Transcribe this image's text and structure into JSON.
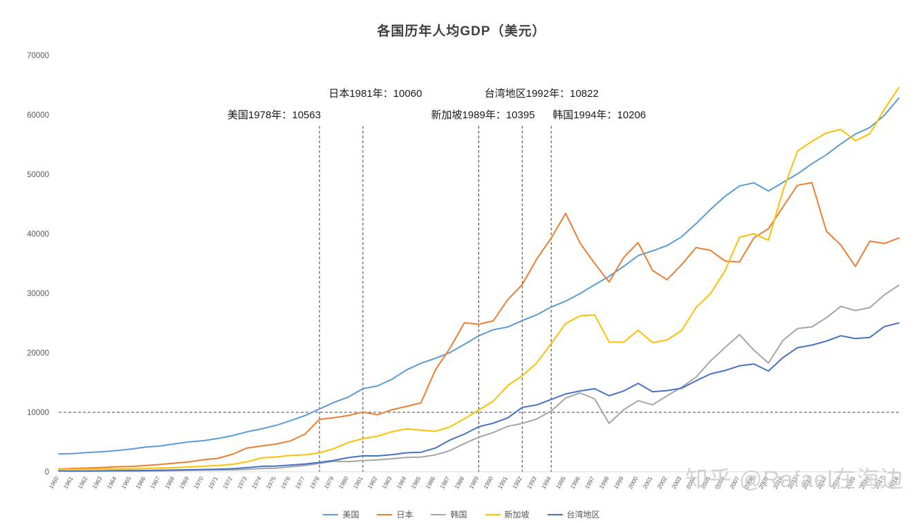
{
  "title": "各国历年人均GDP（美元）",
  "watermark": "知乎 @Rafael在海边",
  "chart_data": {
    "type": "line",
    "title": "各国历年人均GDP（美元）",
    "xlabel": "",
    "ylabel": "",
    "ylim": [
      0,
      70000
    ],
    "ytick_interval": 10000,
    "grid": false,
    "legend_position": "bottom",
    "reference_line_y": 10000,
    "reference_lines_x": [
      1978,
      1981,
      1989,
      1992,
      1994
    ],
    "annotations": [
      {
        "text": "美国1978年：10563",
        "year": 1978,
        "row": 2
      },
      {
        "text": "日本1981年：10060",
        "year": 1981,
        "row": 1
      },
      {
        "text": "新加坡1989年：10395",
        "year": 1989,
        "row": 2
      },
      {
        "text": "台湾地区1992年：10822",
        "year": 1992,
        "row": 1
      },
      {
        "text": "韩国1994年：10206",
        "year": 1994,
        "row": 2
      }
    ],
    "x": [
      1960,
      1961,
      1962,
      1963,
      1964,
      1965,
      1966,
      1967,
      1968,
      1969,
      1970,
      1971,
      1972,
      1973,
      1974,
      1975,
      1976,
      1977,
      1978,
      1979,
      1980,
      1981,
      1982,
      1983,
      1984,
      1985,
      1986,
      1987,
      1988,
      1989,
      1990,
      1991,
      1992,
      1993,
      1994,
      1995,
      1996,
      1997,
      1998,
      1999,
      2000,
      2001,
      2002,
      2003,
      2004,
      2005,
      2006,
      2007,
      2008,
      2009,
      2010,
      2011,
      2012,
      2013,
      2014,
      2015,
      2016,
      2017,
      2018
    ],
    "series": [
      {
        "name": "美国",
        "color": "#5B9BD5",
        "values": [
          3007,
          3067,
          3244,
          3375,
          3574,
          3828,
          4146,
          4336,
          4696,
          5032,
          5234,
          5609,
          6094,
          6726,
          7226,
          7801,
          8592,
          9453,
          10563,
          11674,
          12575,
          13976,
          14434,
          15544,
          17121,
          18237,
          19071,
          20039,
          21417,
          22857,
          23889,
          24342,
          25419,
          26387,
          27695,
          28691,
          29968,
          31459,
          32854,
          34514,
          36335,
          37133,
          38023,
          39496,
          41713,
          44115,
          46299,
          48050,
          48570,
          47195,
          48651,
          50066,
          51784,
          53291,
          55124,
          56763,
          57867,
          59915,
          62805
        ]
      },
      {
        "name": "日本",
        "color": "#ED7D31",
        "values": [
          479,
          564,
          634,
          718,
          836,
          920,
          1058,
          1228,
          1451,
          1669,
          2038,
          2272,
          2967,
          3998,
          4354,
          4659,
          5198,
          6336,
          8822,
          9106,
          9465,
          10060,
          9578,
          10425,
          10985,
          11585,
          17112,
          20745,
          25051,
          24813,
          25359,
          28925,
          31465,
          35766,
          39269,
          43440,
          38437,
          35022,
          31903,
          36027,
          38532,
          33846,
          32289,
          34808,
          37689,
          37218,
          35434,
          35275,
          39339,
          40855,
          44508,
          48168,
          48603,
          40454,
          38109,
          34524,
          38762,
          38387,
          39290
        ]
      },
      {
        "name": "韩国",
        "color": "#A5A5A5",
        "values": [
          158,
          94,
          106,
          146,
          124,
          109,
          133,
          161,
          198,
          243,
          279,
          301,
          324,
          406,
          563,
          617,
          834,
          1056,
          1406,
          1784,
          1715,
          1883,
          1992,
          2199,
          2413,
          2482,
          2835,
          3555,
          4749,
          5817,
          6610,
          7637,
          8127,
          8885,
          10206,
          12404,
          13254,
          12251,
          8134,
          10432,
          11948,
          11253,
          12783,
          14209,
          15908,
          18640,
          20888,
          23061,
          20431,
          18292,
          22087,
          24080,
          24359,
          25890,
          27811,
          27105,
          27608,
          29743,
          31363
        ]
      },
      {
        "name": "新加坡",
        "color": "#FFC000",
        "values": [
          428,
          449,
          472,
          511,
          485,
          516,
          566,
          626,
          708,
          812,
          926,
          1071,
          1264,
          1685,
          2341,
          2490,
          2759,
          2845,
          3193,
          3900,
          4928,
          5596,
          5976,
          6731,
          7228,
          7002,
          6799,
          7539,
          8914,
          10395,
          11862,
          14502,
          16136,
          18290,
          21552,
          24914,
          26233,
          26376,
          21829,
          21796,
          23793,
          21700,
          22160,
          23730,
          27608,
          29961,
          33769,
          39432,
          40007,
          38927,
          47237,
          53890,
          55546,
          56967,
          57562,
          55646,
          56828,
          60913,
          64582
        ]
      },
      {
        "name": "台湾地区",
        "color": "#4472C4",
        "values": [
          163,
          152,
          162,
          178,
          202,
          217,
          237,
          267,
          304,
          345,
          393,
          443,
          522,
          695,
          920,
          964,
          1132,
          1301,
          1577,
          1920,
          2389,
          2691,
          2675,
          2882,
          3203,
          3295,
          3993,
          5325,
          6338,
          7575,
          8178,
          9063,
          10822,
          11250,
          12160,
          13076,
          13597,
          13968,
          12787,
          13585,
          14877,
          13448,
          13651,
          14041,
          15290,
          16456,
          17026,
          17814,
          18131,
          16933,
          19197,
          20866,
          21295,
          21973,
          22874,
          22400,
          22592,
          24408,
          25026
        ]
      }
    ]
  }
}
